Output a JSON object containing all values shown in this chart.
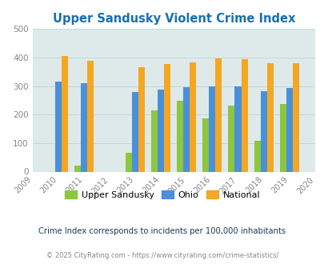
{
  "title": "Upper Sandusky Violent Crime Index",
  "all_years": [
    2009,
    2010,
    2011,
    2012,
    2013,
    2014,
    2015,
    2016,
    2017,
    2018,
    2019,
    2020
  ],
  "data_years": [
    2010,
    2011,
    2013,
    2014,
    2015,
    2016,
    2017,
    2018,
    2019
  ],
  "upper_sandusky": [
    0,
    20,
    65,
    215,
    248,
    187,
    232,
    108,
    236
  ],
  "ohio": [
    315,
    310,
    278,
    288,
    295,
    300,
    298,
    281,
    294
  ],
  "national": [
    405,
    388,
    367,
    376,
    384,
    398,
    394,
    381,
    380
  ],
  "bar_color_city": "#8dc63f",
  "bar_color_ohio": "#4a90d9",
  "bar_color_national": "#f5a623",
  "bg_color": "#deeaea",
  "ylim": [
    0,
    500
  ],
  "yticks": [
    0,
    100,
    200,
    300,
    400,
    500
  ],
  "title_color": "#1a6faf",
  "legend_labels": [
    "Upper Sandusky",
    "Ohio",
    "National"
  ],
  "footnote1": "Crime Index corresponds to incidents per 100,000 inhabitants",
  "footnote2": "© 2025 CityRating.com - https://www.cityrating.com/crime-statistics/",
  "bar_width": 0.25,
  "grid_color": "#c0d8d8",
  "tick_color": "#888888"
}
